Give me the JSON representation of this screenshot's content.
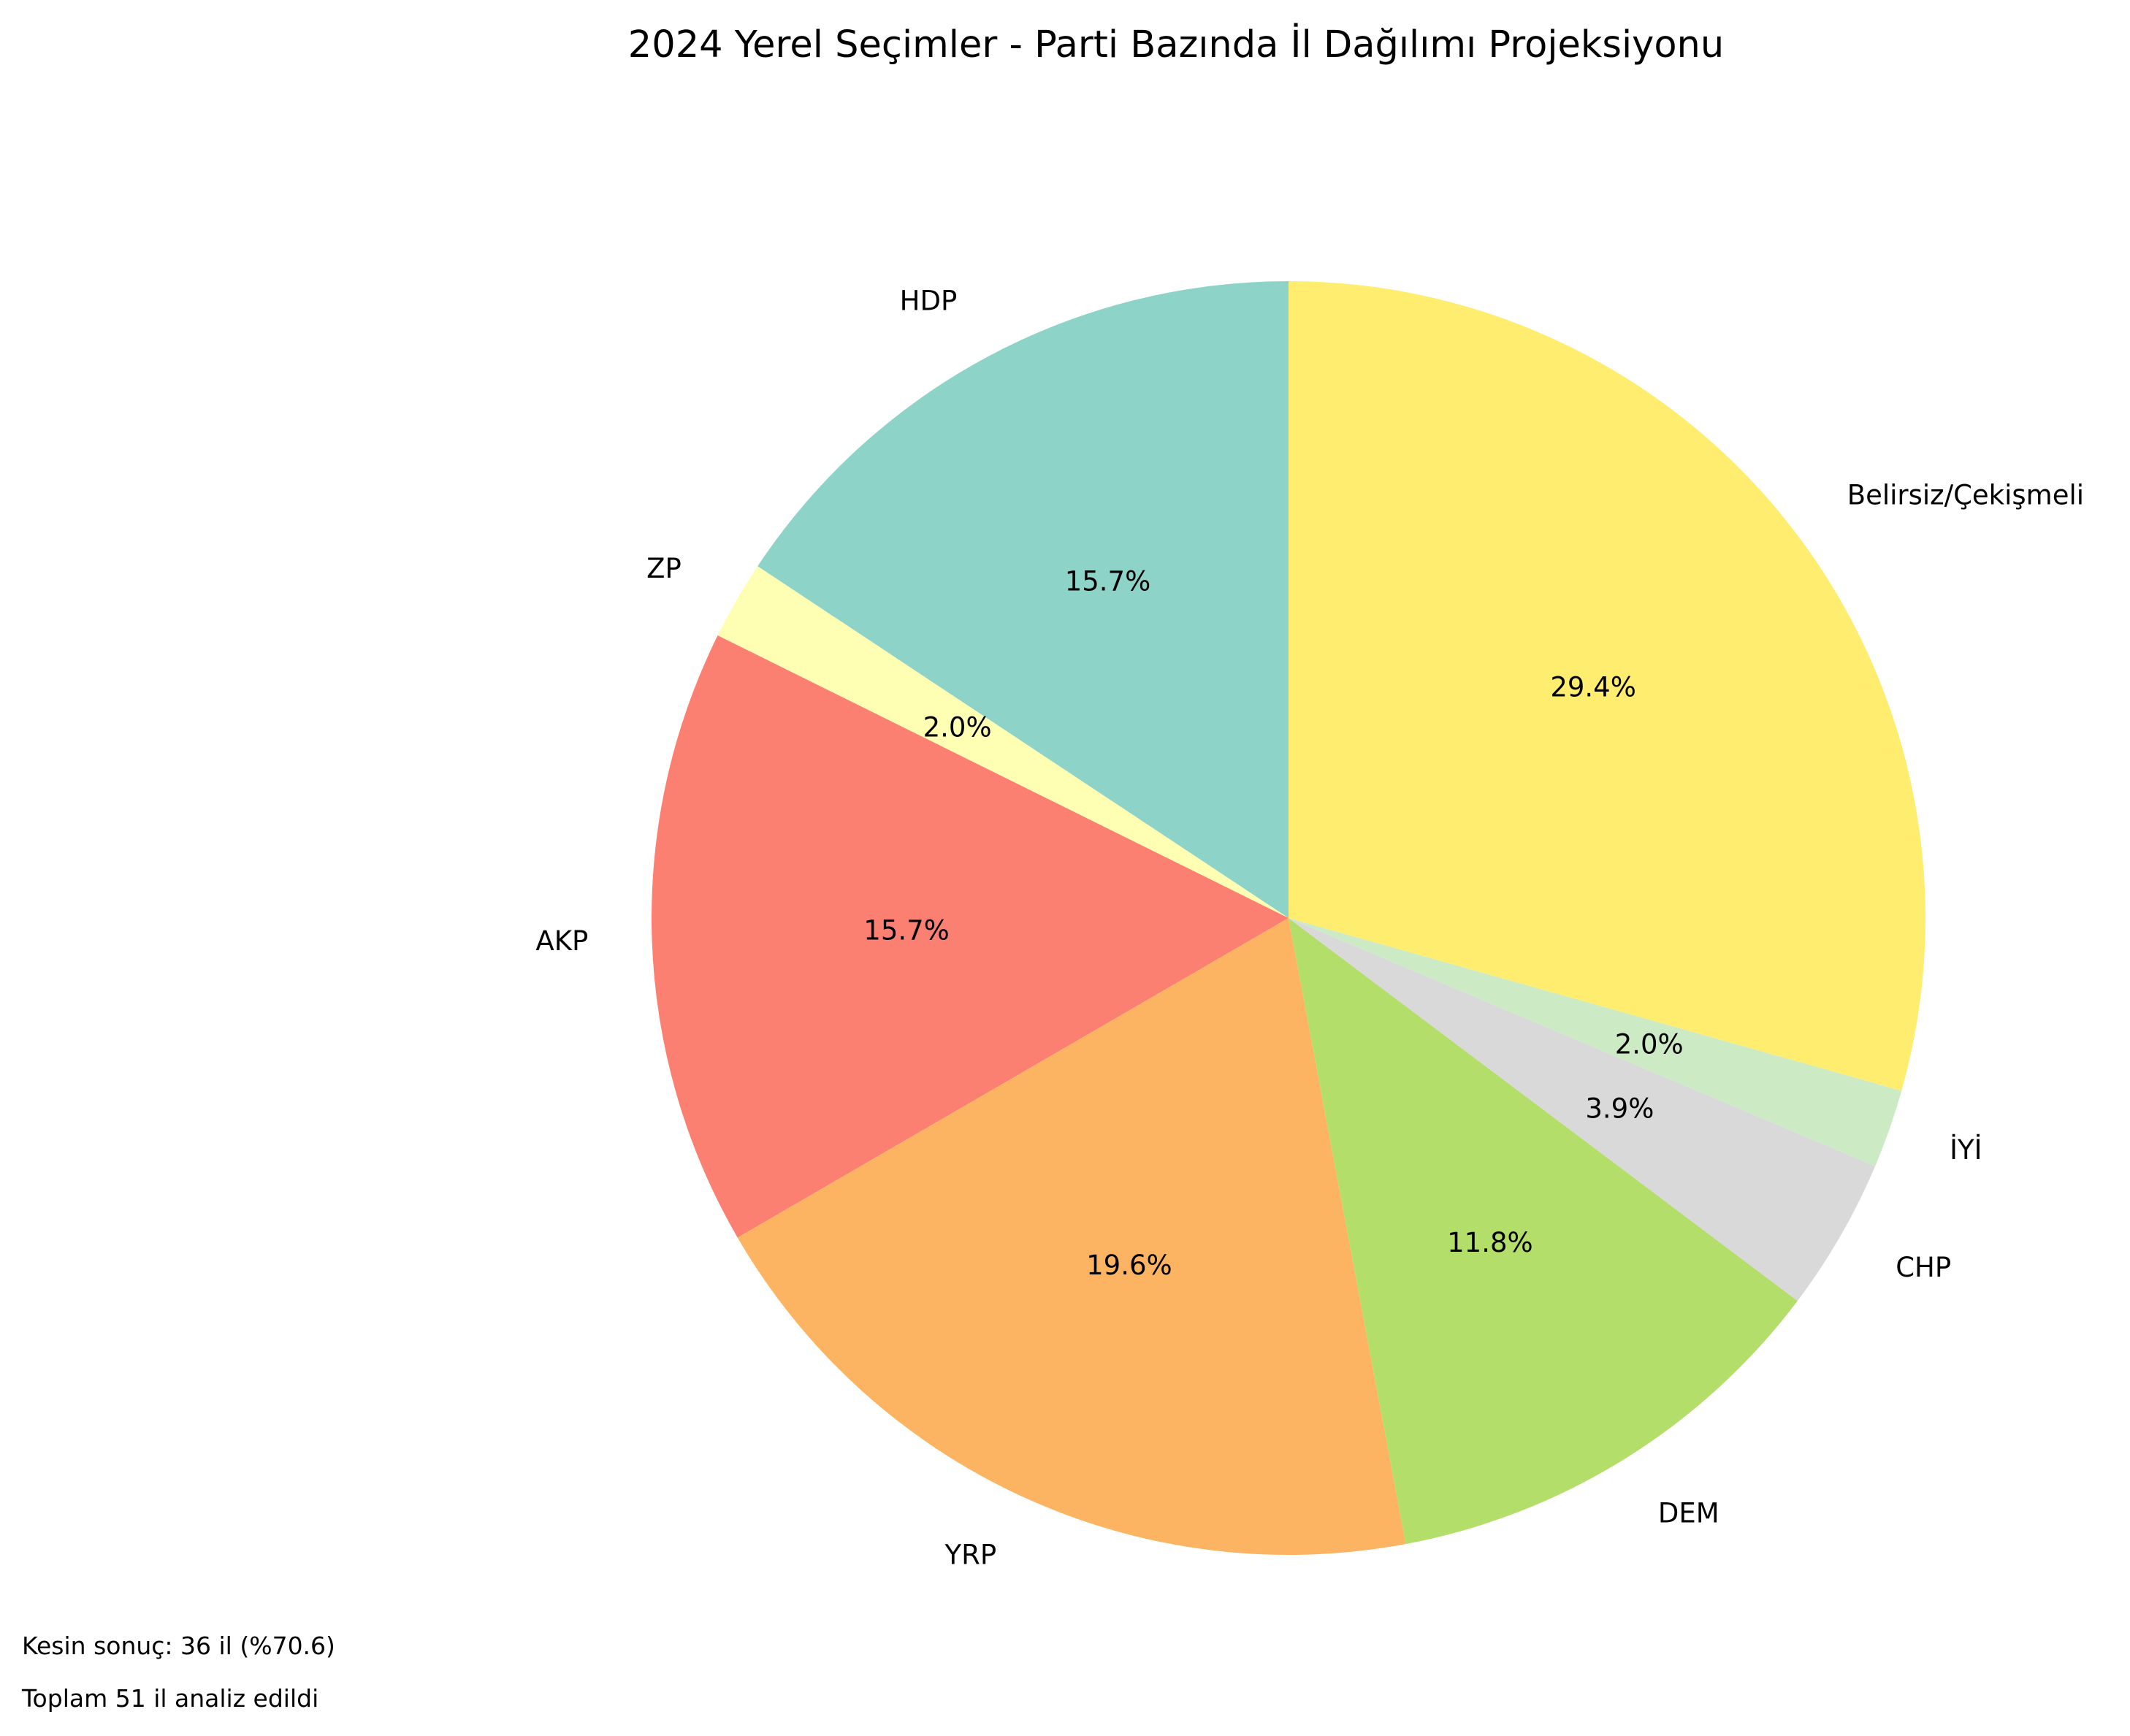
{
  "chart_data": {
    "type": "pie",
    "title": "2024 Yerel Seçimler - Parti Bazında İl Dağılımı Projeksiyonu",
    "start_angle_deg": 90,
    "direction": "counterclockwise",
    "slices": [
      {
        "name": "HDP",
        "value": 15.7,
        "label": "15.7%",
        "color": "#8dd3c7"
      },
      {
        "name": "ZP",
        "value": 2.0,
        "label": "2.0%",
        "color": "#ffffb3"
      },
      {
        "name": "AKP",
        "value": 15.7,
        "label": "15.7%",
        "color": "#fb8072"
      },
      {
        "name": "YRP",
        "value": 19.6,
        "label": "19.6%",
        "color": "#fdb462"
      },
      {
        "name": "DEM",
        "value": 11.8,
        "label": "11.8%",
        "color": "#b3de69"
      },
      {
        "name": "CHP",
        "value": 3.9,
        "label": "3.9%",
        "color": "#d9d9d9"
      },
      {
        "name": "İYİ",
        "value": 2.0,
        "label": "2.0%",
        "color": "#ccebc5"
      },
      {
        "name": "Belirsiz/Çekişmeli",
        "value": 29.4,
        "label": "29.4%",
        "color": "#ffed6f"
      }
    ]
  },
  "footnotes": {
    "certain": "Kesin sonuç: 36 il (%70.6)",
    "total": "Toplam 51 il analiz edildi"
  }
}
